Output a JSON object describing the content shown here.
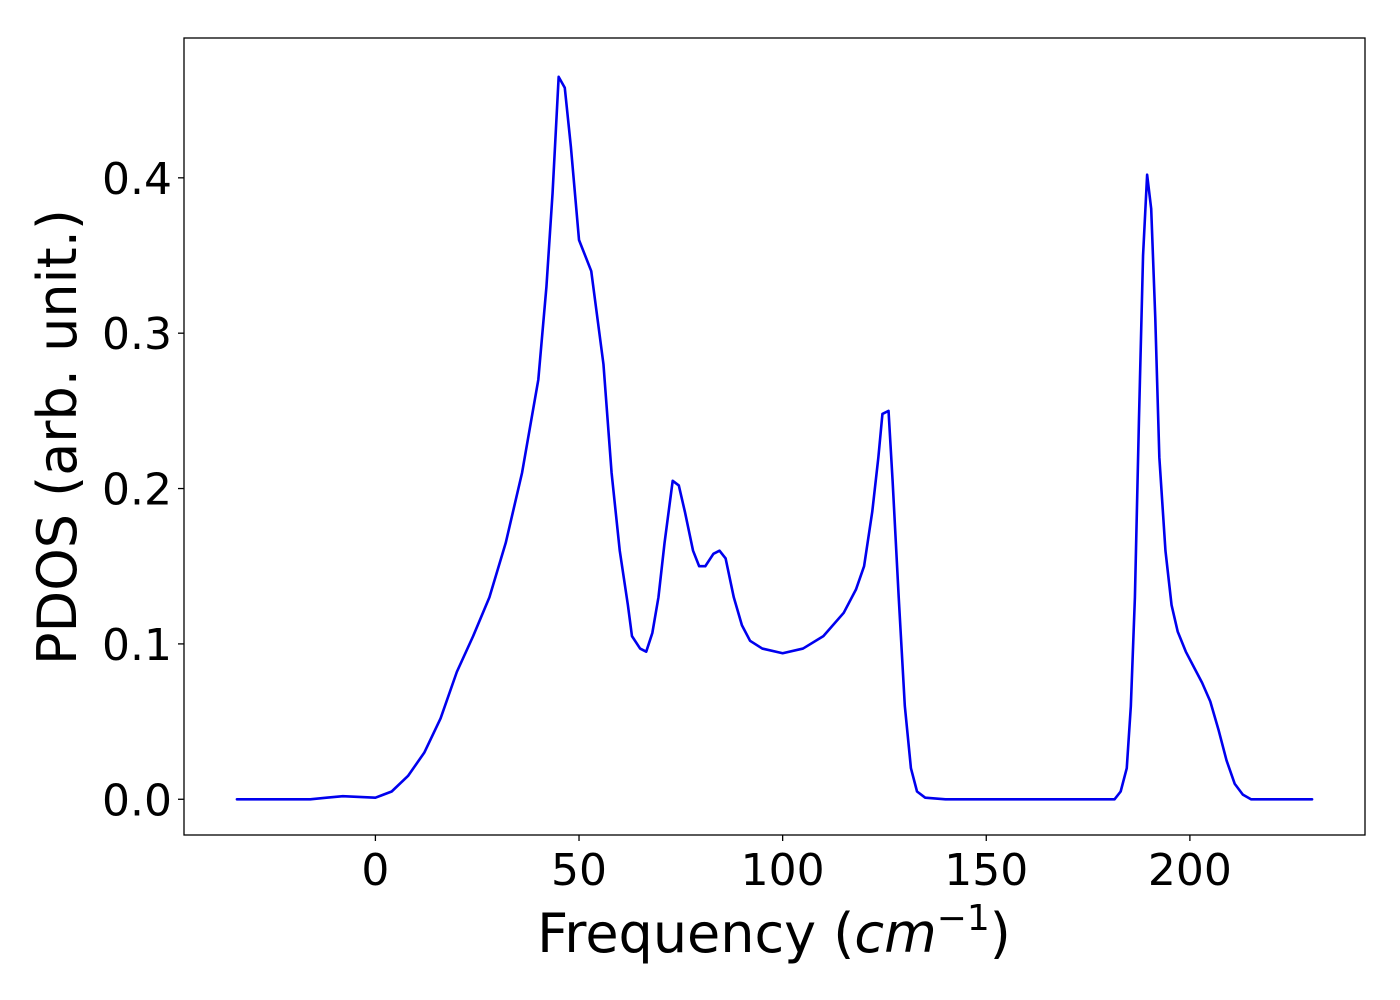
{
  "chart_data": {
    "type": "line",
    "title": "",
    "xlabel": {
      "prefix": "Frequency (",
      "unit_base": "cm",
      "unit_exponent": "−1",
      "suffix": ")"
    },
    "ylabel": "PDOS (arb. unit.)",
    "xlim": [
      -47,
      243
    ],
    "ylim": [
      -0.023,
      0.49
    ],
    "xticks": [
      0,
      50,
      100,
      150,
      200
    ],
    "xtick_labels": [
      "0",
      "50",
      "100",
      "150",
      "200"
    ],
    "yticks": [
      0.0,
      0.1,
      0.2,
      0.3,
      0.4
    ],
    "ytick_labels": [
      "0.0",
      "0.1",
      "0.2",
      "0.3",
      "0.4"
    ],
    "grid": false,
    "legend": "none",
    "series": [
      {
        "color": "#0000ee",
        "x": [
          -34,
          -16,
          -12,
          -8,
          -4,
          0,
          4,
          8,
          12,
          16,
          20,
          24,
          28,
          32,
          36,
          40,
          42,
          43.5,
          45,
          46.5,
          48,
          50,
          53,
          54,
          56,
          58,
          60,
          62,
          63,
          65,
          66.5,
          68,
          69.5,
          71,
          73,
          74.5,
          76,
          78,
          79.5,
          81,
          83,
          84.5,
          86,
          88,
          90,
          92,
          95,
          100,
          105,
          110,
          115,
          118,
          120,
          122,
          123.5,
          124.5,
          126,
          127,
          128.5,
          130,
          131.5,
          133,
          135,
          140,
          150,
          160,
          170,
          178,
          180,
          181.5,
          183,
          184.5,
          185.5,
          186.5,
          187.5,
          188.5,
          189.5,
          190.5,
          191.5,
          192.5,
          194,
          195.5,
          197,
          199,
          201,
          203,
          205,
          207,
          209,
          211,
          213,
          215,
          220,
          230
        ],
        "y": [
          0.0,
          0.0,
          0.001,
          0.002,
          0.0015,
          0.001,
          0.005,
          0.015,
          0.03,
          0.052,
          0.082,
          0.105,
          0.13,
          0.165,
          0.21,
          0.27,
          0.33,
          0.39,
          0.465,
          0.458,
          0.42,
          0.36,
          0.34,
          0.32,
          0.28,
          0.21,
          0.16,
          0.125,
          0.105,
          0.097,
          0.095,
          0.107,
          0.13,
          0.165,
          0.205,
          0.202,
          0.185,
          0.16,
          0.15,
          0.15,
          0.158,
          0.16,
          0.155,
          0.13,
          0.112,
          0.102,
          0.097,
          0.094,
          0.097,
          0.105,
          0.12,
          0.135,
          0.15,
          0.185,
          0.22,
          0.248,
          0.25,
          0.205,
          0.13,
          0.06,
          0.02,
          0.005,
          0.001,
          0.0,
          0.0,
          0.0,
          0.0,
          0.0,
          0.0,
          0.0,
          0.005,
          0.02,
          0.06,
          0.13,
          0.245,
          0.35,
          0.402,
          0.38,
          0.31,
          0.22,
          0.16,
          0.125,
          0.108,
          0.095,
          0.085,
          0.075,
          0.063,
          0.045,
          0.025,
          0.01,
          0.003,
          0.0,
          0.0,
          0.0
        ]
      }
    ]
  }
}
